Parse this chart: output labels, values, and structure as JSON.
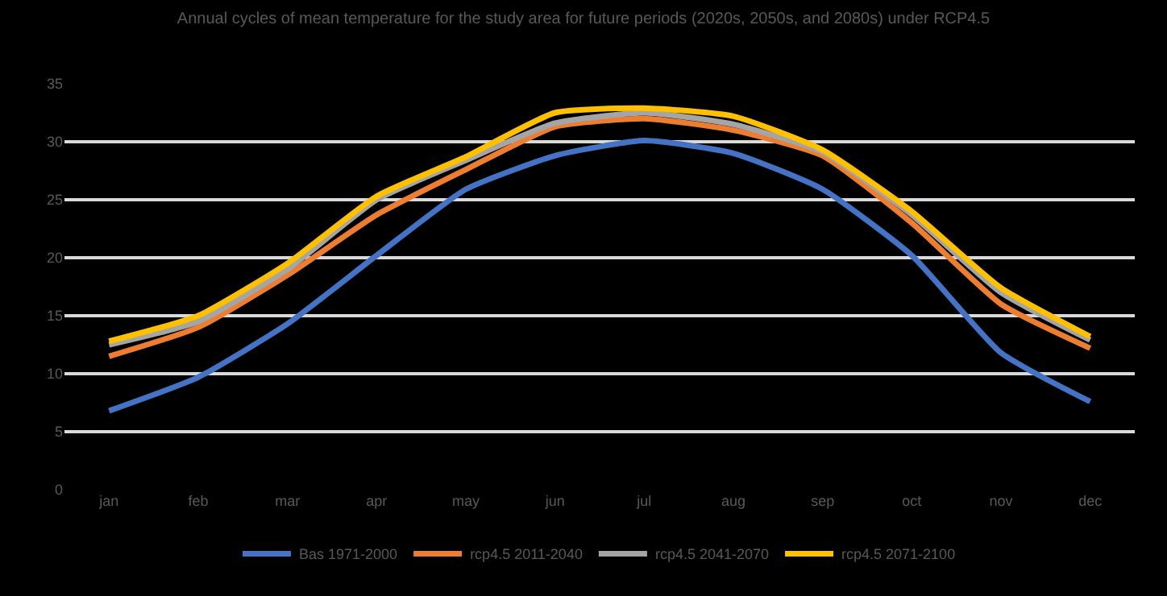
{
  "chart_data": {
    "type": "line",
    "title": "Annual cycles of mean temperature for the study area for future periods (2020s, 2050s, and 2080s) under RCP4.5",
    "categories": [
      "jan",
      "feb",
      "mar",
      "apr",
      "may",
      "jun",
      "jul",
      "aug",
      "sep",
      "oct",
      "nov",
      "dec"
    ],
    "series": [
      {
        "name": "Bas 1971-2000",
        "color": "#4472c4",
        "values": [
          6.8,
          9.7,
          14.3,
          20.2,
          25.9,
          28.8,
          30.1,
          29.0,
          25.9,
          20.2,
          11.8,
          7.6
        ]
      },
      {
        "name": "rcp4.5 2011-2040",
        "color": "#ed7d31",
        "values": [
          11.5,
          14.0,
          18.5,
          23.7,
          27.6,
          31.3,
          32.0,
          31.0,
          28.8,
          23.0,
          16.0,
          12.2
        ]
      },
      {
        "name": "rcp4.5 2041-2070",
        "color": "#a5a5a5",
        "values": [
          12.5,
          14.5,
          19.0,
          25.0,
          28.4,
          31.6,
          32.5,
          31.5,
          29.1,
          23.7,
          17.0,
          12.9
        ]
      },
      {
        "name": "rcp4.5 2071-2100",
        "color": "#ffc000",
        "values": [
          12.8,
          15.0,
          19.5,
          25.3,
          28.7,
          32.5,
          32.9,
          32.2,
          29.3,
          24.0,
          17.4,
          13.2
        ]
      }
    ],
    "ylim": [
      0,
      35
    ],
    "yticks": [
      0,
      5,
      10,
      15,
      20,
      25,
      30,
      35
    ],
    "grid": "y",
    "legend": "bottom",
    "marker": "none",
    "line_style": "solid"
  }
}
